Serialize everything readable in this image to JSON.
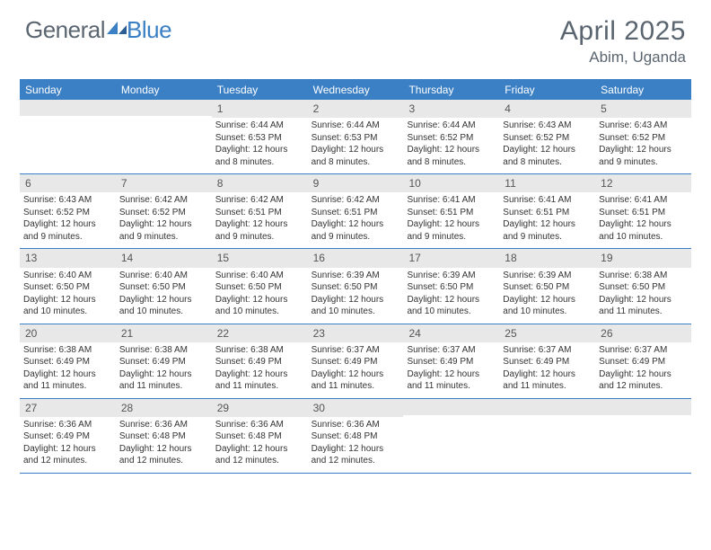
{
  "brand": {
    "part1": "General",
    "part2": "Blue"
  },
  "title": "April 2025",
  "location": "Abim, Uganda",
  "colors": {
    "header_bg": "#3b7fc4",
    "header_text": "#ffffff",
    "day_number_bg": "#e8e8e8",
    "border": "#3b7fc4",
    "body_text": "#333333",
    "muted_text": "#5a6570"
  },
  "day_headers": [
    "Sunday",
    "Monday",
    "Tuesday",
    "Wednesday",
    "Thursday",
    "Friday",
    "Saturday"
  ],
  "weeks": [
    [
      {
        "empty": true
      },
      {
        "empty": true
      },
      {
        "day": "1",
        "sunrise": "Sunrise: 6:44 AM",
        "sunset": "Sunset: 6:53 PM",
        "daylight": "Daylight: 12 hours and 8 minutes."
      },
      {
        "day": "2",
        "sunrise": "Sunrise: 6:44 AM",
        "sunset": "Sunset: 6:53 PM",
        "daylight": "Daylight: 12 hours and 8 minutes."
      },
      {
        "day": "3",
        "sunrise": "Sunrise: 6:44 AM",
        "sunset": "Sunset: 6:52 PM",
        "daylight": "Daylight: 12 hours and 8 minutes."
      },
      {
        "day": "4",
        "sunrise": "Sunrise: 6:43 AM",
        "sunset": "Sunset: 6:52 PM",
        "daylight": "Daylight: 12 hours and 8 minutes."
      },
      {
        "day": "5",
        "sunrise": "Sunrise: 6:43 AM",
        "sunset": "Sunset: 6:52 PM",
        "daylight": "Daylight: 12 hours and 9 minutes."
      }
    ],
    [
      {
        "day": "6",
        "sunrise": "Sunrise: 6:43 AM",
        "sunset": "Sunset: 6:52 PM",
        "daylight": "Daylight: 12 hours and 9 minutes."
      },
      {
        "day": "7",
        "sunrise": "Sunrise: 6:42 AM",
        "sunset": "Sunset: 6:52 PM",
        "daylight": "Daylight: 12 hours and 9 minutes."
      },
      {
        "day": "8",
        "sunrise": "Sunrise: 6:42 AM",
        "sunset": "Sunset: 6:51 PM",
        "daylight": "Daylight: 12 hours and 9 minutes."
      },
      {
        "day": "9",
        "sunrise": "Sunrise: 6:42 AM",
        "sunset": "Sunset: 6:51 PM",
        "daylight": "Daylight: 12 hours and 9 minutes."
      },
      {
        "day": "10",
        "sunrise": "Sunrise: 6:41 AM",
        "sunset": "Sunset: 6:51 PM",
        "daylight": "Daylight: 12 hours and 9 minutes."
      },
      {
        "day": "11",
        "sunrise": "Sunrise: 6:41 AM",
        "sunset": "Sunset: 6:51 PM",
        "daylight": "Daylight: 12 hours and 9 minutes."
      },
      {
        "day": "12",
        "sunrise": "Sunrise: 6:41 AM",
        "sunset": "Sunset: 6:51 PM",
        "daylight": "Daylight: 12 hours and 10 minutes."
      }
    ],
    [
      {
        "day": "13",
        "sunrise": "Sunrise: 6:40 AM",
        "sunset": "Sunset: 6:50 PM",
        "daylight": "Daylight: 12 hours and 10 minutes."
      },
      {
        "day": "14",
        "sunrise": "Sunrise: 6:40 AM",
        "sunset": "Sunset: 6:50 PM",
        "daylight": "Daylight: 12 hours and 10 minutes."
      },
      {
        "day": "15",
        "sunrise": "Sunrise: 6:40 AM",
        "sunset": "Sunset: 6:50 PM",
        "daylight": "Daylight: 12 hours and 10 minutes."
      },
      {
        "day": "16",
        "sunrise": "Sunrise: 6:39 AM",
        "sunset": "Sunset: 6:50 PM",
        "daylight": "Daylight: 12 hours and 10 minutes."
      },
      {
        "day": "17",
        "sunrise": "Sunrise: 6:39 AM",
        "sunset": "Sunset: 6:50 PM",
        "daylight": "Daylight: 12 hours and 10 minutes."
      },
      {
        "day": "18",
        "sunrise": "Sunrise: 6:39 AM",
        "sunset": "Sunset: 6:50 PM",
        "daylight": "Daylight: 12 hours and 10 minutes."
      },
      {
        "day": "19",
        "sunrise": "Sunrise: 6:38 AM",
        "sunset": "Sunset: 6:50 PM",
        "daylight": "Daylight: 12 hours and 11 minutes."
      }
    ],
    [
      {
        "day": "20",
        "sunrise": "Sunrise: 6:38 AM",
        "sunset": "Sunset: 6:49 PM",
        "daylight": "Daylight: 12 hours and 11 minutes."
      },
      {
        "day": "21",
        "sunrise": "Sunrise: 6:38 AM",
        "sunset": "Sunset: 6:49 PM",
        "daylight": "Daylight: 12 hours and 11 minutes."
      },
      {
        "day": "22",
        "sunrise": "Sunrise: 6:38 AM",
        "sunset": "Sunset: 6:49 PM",
        "daylight": "Daylight: 12 hours and 11 minutes."
      },
      {
        "day": "23",
        "sunrise": "Sunrise: 6:37 AM",
        "sunset": "Sunset: 6:49 PM",
        "daylight": "Daylight: 12 hours and 11 minutes."
      },
      {
        "day": "24",
        "sunrise": "Sunrise: 6:37 AM",
        "sunset": "Sunset: 6:49 PM",
        "daylight": "Daylight: 12 hours and 11 minutes."
      },
      {
        "day": "25",
        "sunrise": "Sunrise: 6:37 AM",
        "sunset": "Sunset: 6:49 PM",
        "daylight": "Daylight: 12 hours and 11 minutes."
      },
      {
        "day": "26",
        "sunrise": "Sunrise: 6:37 AM",
        "sunset": "Sunset: 6:49 PM",
        "daylight": "Daylight: 12 hours and 12 minutes."
      }
    ],
    [
      {
        "day": "27",
        "sunrise": "Sunrise: 6:36 AM",
        "sunset": "Sunset: 6:49 PM",
        "daylight": "Daylight: 12 hours and 12 minutes."
      },
      {
        "day": "28",
        "sunrise": "Sunrise: 6:36 AM",
        "sunset": "Sunset: 6:48 PM",
        "daylight": "Daylight: 12 hours and 12 minutes."
      },
      {
        "day": "29",
        "sunrise": "Sunrise: 6:36 AM",
        "sunset": "Sunset: 6:48 PM",
        "daylight": "Daylight: 12 hours and 12 minutes."
      },
      {
        "day": "30",
        "sunrise": "Sunrise: 6:36 AM",
        "sunset": "Sunset: 6:48 PM",
        "daylight": "Daylight: 12 hours and 12 minutes."
      },
      {
        "empty": true
      },
      {
        "empty": true
      },
      {
        "empty": true
      }
    ]
  ]
}
